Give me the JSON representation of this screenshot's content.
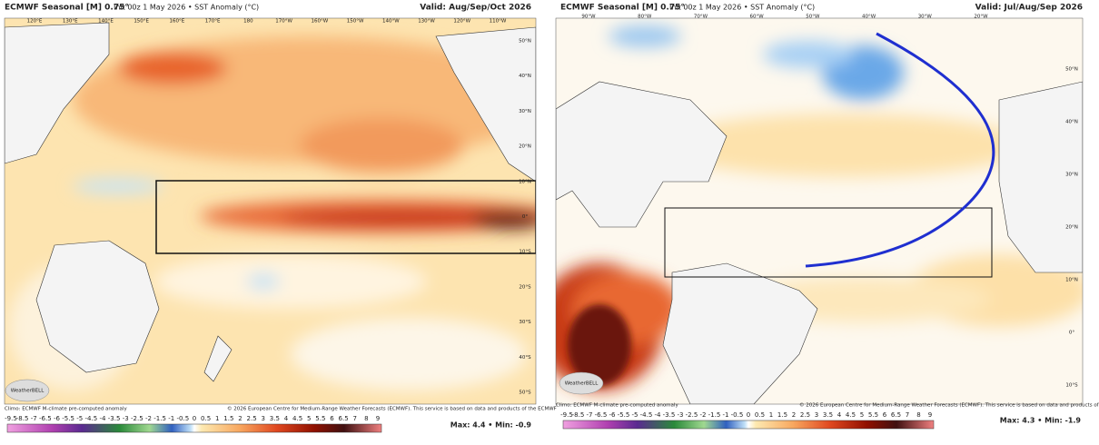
{
  "panels": [
    {
      "title_bold": "ECMWF Seasonal [M] 0.75°",
      "title_rest": "Init 00z 1 May 2026 • SST Anomaly (°C)",
      "valid": "Valid: Aug/Sep/Oct 2026",
      "lon_labels": [
        "120°E",
        "130°E",
        "140°E",
        "150°E",
        "160°E",
        "170°E",
        "180",
        "170°W",
        "160°W",
        "150°W",
        "140°W",
        "130°W",
        "120°W",
        "110°W"
      ],
      "lat_labels": [
        "50°N",
        "40°N",
        "30°N",
        "20°N",
        "10°N",
        "0°",
        "10°S",
        "20°S",
        "30°S",
        "40°S",
        "50°S"
      ],
      "logo": "WeatherBELL",
      "climo": "Climo: ECMWF M-climate pre-computed anomaly",
      "copyright": "© 2026 European Centre for Medium-Range Weather Forecasts (ECMWF). This service is based on data and products of the ECMWF",
      "maxmin": "Max: 4.4 • Min: -0.9",
      "colorbar": [
        "-9.5",
        "-8.5",
        "-7",
        "-6.5",
        "-6",
        "-5.5",
        "-5",
        "-4.5",
        "-4",
        "-3.5",
        "-3",
        "-2.5",
        "-2",
        "-1.5",
        "-1",
        "-0.5",
        "0",
        "0.5",
        "1",
        "1.5",
        "2",
        "2.5",
        "3",
        "3.5",
        "4",
        "4.5",
        "5",
        "5.5",
        "6",
        "6.5",
        "7",
        "8",
        "9"
      ]
    },
    {
      "title_bold": "ECMWF Seasonal [M] 0.75°",
      "title_rest": "Init 00z 1 May 2026 • SST Anomaly (°C)",
      "valid": "Valid: Jul/Aug/Sep 2026",
      "lon_labels": [
        "90°W",
        "80°W",
        "70°W",
        "60°W",
        "50°W",
        "40°W",
        "30°W",
        "20°W"
      ],
      "lat_labels": [
        "50°N",
        "40°N",
        "30°N",
        "20°N",
        "10°N",
        "0°",
        "10°S"
      ],
      "logo": "WeatherBELL",
      "climo": "Climo: ECMWF M-climate pre-computed anomaly",
      "copyright": "© 2026 European Centre for Medium-Range Weather Forecasts (ECMWF). This service is based on data and products of the ECMWF",
      "maxmin": "Max: 4.3 • Min: -1.9",
      "colorbar": [
        "-9.5",
        "-8.5",
        "-7",
        "-6.5",
        "-6",
        "-5.5",
        "-5",
        "-4.5",
        "-4",
        "-3.5",
        "-3",
        "-2.5",
        "-2",
        "-1.5",
        "-1",
        "-0.5",
        "0",
        "0.5",
        "1",
        "1.5",
        "2",
        "2.5",
        "3",
        "3.5",
        "4",
        "4.5",
        "5",
        "5.5",
        "6",
        "6.5",
        "7",
        "8",
        "9"
      ]
    }
  ]
}
